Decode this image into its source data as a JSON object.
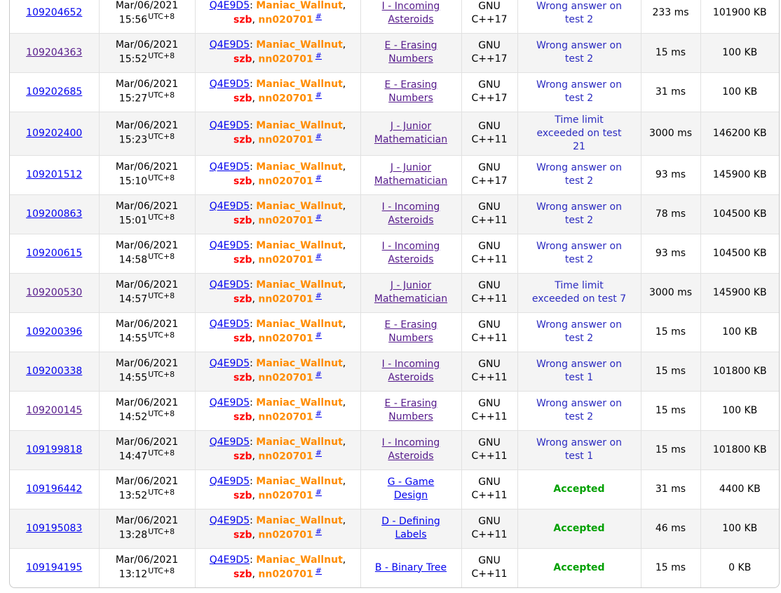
{
  "colors": {
    "link_blue": "#0000ee",
    "link_visited_purple": "#551a8b",
    "user_orange": "#ff8c00",
    "user_red": "#ff0000",
    "verdict_rejected_blue": "#2b2bc0",
    "verdict_accepted_green": "#00a000",
    "row_alt_background": "#f4f4f4",
    "table_border": "#c9c9c9",
    "cell_divider": "#e1e1e1"
  },
  "table": {
    "timezone_suffix": "UTC+8",
    "party": {
      "team": "Q4E9D5",
      "colon": ":",
      "separator": ", ",
      "practice_marker": "#",
      "members": [
        {
          "name": "Maniac_Wallnut",
          "color": "orange"
        },
        {
          "name": "szb",
          "color": "red"
        },
        {
          "name": "nn020701",
          "color": "orange"
        }
      ]
    },
    "rows": [
      {
        "id": "109204652",
        "id_visited": false,
        "date": "Mar/06/2021",
        "time": "15:56",
        "problem": "I - Incoming Asteroids",
        "problem_visited": true,
        "language": "GNU C++17",
        "verdict": "Wrong answer on test 2",
        "verdict_status": "rejected",
        "exec_time": "233 ms",
        "memory": "101900 KB"
      },
      {
        "id": "109204363",
        "id_visited": true,
        "date": "Mar/06/2021",
        "time": "15:52",
        "problem": "E - Erasing Numbers",
        "problem_visited": true,
        "language": "GNU C++17",
        "verdict": "Wrong answer on test 2",
        "verdict_status": "rejected",
        "exec_time": "15 ms",
        "memory": "100 KB"
      },
      {
        "id": "109202685",
        "id_visited": false,
        "date": "Mar/06/2021",
        "time": "15:27",
        "problem": "E - Erasing Numbers",
        "problem_visited": true,
        "language": "GNU C++17",
        "verdict": "Wrong answer on test 2",
        "verdict_status": "rejected",
        "exec_time": "31 ms",
        "memory": "100 KB"
      },
      {
        "id": "109202400",
        "id_visited": false,
        "date": "Mar/06/2021",
        "time": "15:23",
        "problem": "J - Junior Mathematician",
        "problem_visited": true,
        "language": "GNU C++11",
        "verdict": "Time limit exceeded on test 21",
        "verdict_status": "rejected",
        "exec_time": "3000 ms",
        "memory": "146200 KB"
      },
      {
        "id": "109201512",
        "id_visited": false,
        "date": "Mar/06/2021",
        "time": "15:10",
        "problem": "J - Junior Mathematician",
        "problem_visited": true,
        "language": "GNU C++17",
        "verdict": "Wrong answer on test 2",
        "verdict_status": "rejected",
        "exec_time": "93 ms",
        "memory": "145900 KB"
      },
      {
        "id": "109200863",
        "id_visited": false,
        "date": "Mar/06/2021",
        "time": "15:01",
        "problem": "I - Incoming Asteroids",
        "problem_visited": true,
        "language": "GNU C++11",
        "verdict": "Wrong answer on test 2",
        "verdict_status": "rejected",
        "exec_time": "78 ms",
        "memory": "104500 KB"
      },
      {
        "id": "109200615",
        "id_visited": false,
        "date": "Mar/06/2021",
        "time": "14:58",
        "problem": "I - Incoming Asteroids",
        "problem_visited": true,
        "language": "GNU C++11",
        "verdict": "Wrong answer on test 2",
        "verdict_status": "rejected",
        "exec_time": "93 ms",
        "memory": "104500 KB"
      },
      {
        "id": "109200530",
        "id_visited": true,
        "date": "Mar/06/2021",
        "time": "14:57",
        "problem": "J - Junior Mathematician",
        "problem_visited": true,
        "language": "GNU C++11",
        "verdict": "Time limit exceeded on test 7",
        "verdict_status": "rejected",
        "exec_time": "3000 ms",
        "memory": "145900 KB"
      },
      {
        "id": "109200396",
        "id_visited": false,
        "date": "Mar/06/2021",
        "time": "14:55",
        "problem": "E - Erasing Numbers",
        "problem_visited": true,
        "language": "GNU C++11",
        "verdict": "Wrong answer on test 2",
        "verdict_status": "rejected",
        "exec_time": "15 ms",
        "memory": "100 KB"
      },
      {
        "id": "109200338",
        "id_visited": false,
        "date": "Mar/06/2021",
        "time": "14:55",
        "problem": "I - Incoming Asteroids",
        "problem_visited": true,
        "language": "GNU C++11",
        "verdict": "Wrong answer on test 1",
        "verdict_status": "rejected",
        "exec_time": "15 ms",
        "memory": "101800 KB"
      },
      {
        "id": "109200145",
        "id_visited": true,
        "date": "Mar/06/2021",
        "time": "14:52",
        "problem": "E - Erasing Numbers",
        "problem_visited": true,
        "language": "GNU C++11",
        "verdict": "Wrong answer on test 2",
        "verdict_status": "rejected",
        "exec_time": "15 ms",
        "memory": "100 KB"
      },
      {
        "id": "109199818",
        "id_visited": false,
        "date": "Mar/06/2021",
        "time": "14:47",
        "problem": "I - Incoming Asteroids",
        "problem_visited": true,
        "language": "GNU C++11",
        "verdict": "Wrong answer on test 1",
        "verdict_status": "rejected",
        "exec_time": "15 ms",
        "memory": "101800 KB"
      },
      {
        "id": "109196442",
        "id_visited": false,
        "date": "Mar/06/2021",
        "time": "13:52",
        "problem": "G - Game Design",
        "problem_visited": false,
        "language": "GNU C++11",
        "verdict": "Accepted",
        "verdict_status": "accepted",
        "exec_time": "31 ms",
        "memory": "4400 KB"
      },
      {
        "id": "109195083",
        "id_visited": false,
        "date": "Mar/06/2021",
        "time": "13:28",
        "problem": "D - Defining Labels",
        "problem_visited": false,
        "language": "GNU C++11",
        "verdict": "Accepted",
        "verdict_status": "accepted",
        "exec_time": "46 ms",
        "memory": "100 KB"
      },
      {
        "id": "109194195",
        "id_visited": false,
        "date": "Mar/06/2021",
        "time": "13:12",
        "problem": "B - Binary Tree",
        "problem_visited": false,
        "language": "GNU C++11",
        "verdict": "Accepted",
        "verdict_status": "accepted",
        "exec_time": "15 ms",
        "memory": "0 KB"
      }
    ]
  }
}
